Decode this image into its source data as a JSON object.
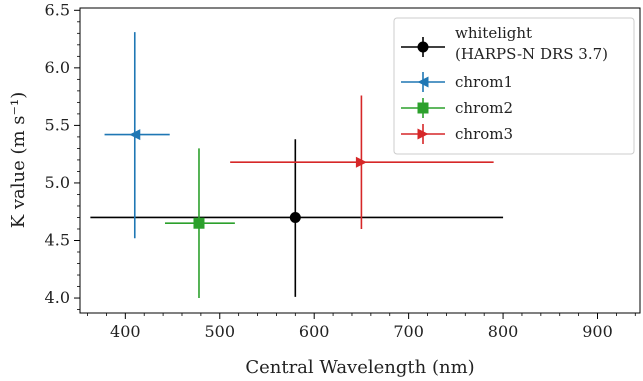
{
  "chart_data": {
    "type": "scatter",
    "xlabel": "Central Wavelength (nm)",
    "ylabel": "K value (m s⁻¹)",
    "xlim": [
      352,
      945
    ],
    "ylim": [
      3.87,
      6.52
    ],
    "x_ticks": [
      400,
      500,
      600,
      700,
      800,
      900
    ],
    "x_tick_labels": [
      "400",
      "500",
      "600",
      "700",
      "800",
      "900"
    ],
    "y_ticks": [
      4.0,
      4.5,
      5.0,
      5.5,
      6.0,
      6.5
    ],
    "y_tick_labels": [
      "4.0",
      "4.5",
      "5.0",
      "5.5",
      "6.0",
      "6.5"
    ],
    "grid": false,
    "legend": "top-right",
    "series": [
      {
        "name": "whitelight",
        "name_line2": "(HARPS-N DRS 3.7)",
        "color": "#000000",
        "marker": "circle",
        "x": 580,
        "y": 4.7,
        "x_low": 363,
        "x_high": 800,
        "y_low": 4.01,
        "y_high": 5.38
      },
      {
        "name": "chrom1",
        "color": "#1f77b4",
        "marker": "triangle-left",
        "x": 410,
        "y": 5.42,
        "x_low": 378,
        "x_high": 447,
        "y_low": 4.52,
        "y_high": 6.31
      },
      {
        "name": "chrom2",
        "color": "#2ca02c",
        "marker": "square",
        "x": 478,
        "y": 4.65,
        "x_low": 442,
        "x_high": 516,
        "y_low": 4.0,
        "y_high": 5.3
      },
      {
        "name": "chrom3",
        "color": "#d62728",
        "marker": "triangle-right",
        "x": 650,
        "y": 5.18,
        "x_low": 511,
        "x_high": 790,
        "y_low": 4.6,
        "y_high": 5.76
      }
    ]
  }
}
